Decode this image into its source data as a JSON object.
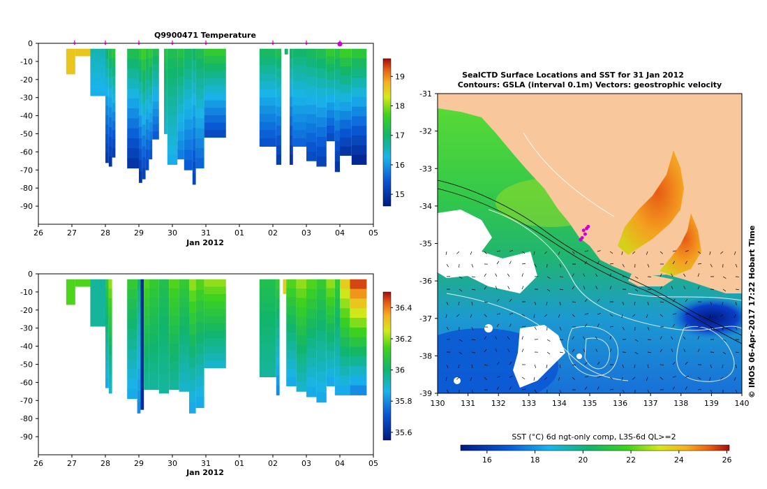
{
  "top_panel": {
    "title": "Q9900471  Temperature",
    "xlabel": "Jan 2012"
  },
  "bottom_panel": {
    "xlabel": "Jan 2012"
  },
  "map_panel": {
    "title_line1": "SealCTD Surface Locations and SST for 31 Jan 2012",
    "title_line2": "Contours: GSLA (interval 0.1m) Vectors: geostrophic velocity",
    "watermark": "©  IMOS 06-Apr-2017 17:22 Hobart Time",
    "colorbar_label": "SST (°C) 6d ngt-only comp, L3S-6d QL>=2"
  },
  "colors": {
    "land": "#f8c89c",
    "nodata": "#ffffff",
    "marker": "#cc00cc"
  },
  "chart_data": [
    {
      "type": "heatmap",
      "name": "temperature-section",
      "title": "Q9900471  Temperature",
      "xlabel": "Jan 2012",
      "x_ticks": [
        "26",
        "27",
        "28",
        "29",
        "30",
        "31",
        "01",
        "02",
        "03",
        "04",
        "05"
      ],
      "x_range": [
        26,
        36
      ],
      "y_ticks": [
        "0",
        "-10",
        "-20",
        "-30",
        "-40",
        "-50",
        "-60",
        "-70",
        "-80",
        "-90"
      ],
      "y_range": [
        -100,
        0
      ],
      "colorbar": {
        "ticks": [
          "15",
          "16",
          "17",
          "18",
          "19"
        ],
        "range": [
          14.6,
          19.6
        ]
      },
      "profile_times": [
        27.08,
        28.0,
        29.0,
        30.0,
        31.0,
        33.0,
        34.0,
        35.0
      ],
      "columns": [
        {
          "x0": 26.83,
          "x1": 27.1,
          "ymin": -17,
          "top": 18.6,
          "bottom": 18.6
        },
        {
          "x0": 27.1,
          "x1": 27.55,
          "ymin": -7,
          "top": 18.6,
          "bottom": 18.6
        },
        {
          "x0": 27.55,
          "x1": 28.0,
          "ymin": -29,
          "top": 16.6,
          "bottom": 16.2
        },
        {
          "x0": 28.0,
          "x1": 28.1,
          "ymin": -66,
          "top": 17.0,
          "bottom": 15.1
        },
        {
          "x0": 28.1,
          "x1": 28.2,
          "ymin": -68,
          "top": 17.2,
          "bottom": 15.0
        },
        {
          "x0": 28.2,
          "x1": 28.3,
          "ymin": -63,
          "top": 17.4,
          "bottom": 15.1
        },
        {
          "x0": 28.65,
          "x1": 29.0,
          "ymin": -69,
          "top": 17.2,
          "bottom": 15.0
        },
        {
          "x0": 29.0,
          "x1": 29.1,
          "ymin": -77,
          "top": 17.4,
          "bottom": 15.0
        },
        {
          "x0": 29.1,
          "x1": 29.2,
          "ymin": -75,
          "top": 17.6,
          "bottom": 15.2
        },
        {
          "x0": 29.2,
          "x1": 29.3,
          "ymin": -70,
          "top": 17.3,
          "bottom": 15.3
        },
        {
          "x0": 29.3,
          "x1": 29.4,
          "ymin": -64,
          "top": 17.5,
          "bottom": 15.4
        },
        {
          "x0": 29.4,
          "x1": 29.6,
          "ymin": -53,
          "top": 17.2,
          "bottom": 15.5
        },
        {
          "x0": 29.75,
          "x1": 29.85,
          "ymin": -50,
          "top": 17.3,
          "bottom": 16.4
        },
        {
          "x0": 29.85,
          "x1": 30.15,
          "ymin": -67,
          "top": 17.2,
          "bottom": 16.2
        },
        {
          "x0": 30.15,
          "x1": 30.35,
          "ymin": -64,
          "top": 17.3,
          "bottom": 15.8
        },
        {
          "x0": 30.35,
          "x1": 30.6,
          "ymin": -70,
          "top": 17.1,
          "bottom": 15.5
        },
        {
          "x0": 30.6,
          "x1": 30.7,
          "ymin": -78,
          "top": 17.0,
          "bottom": 15.2
        },
        {
          "x0": 30.7,
          "x1": 30.95,
          "ymin": -69,
          "top": 17.2,
          "bottom": 15.6
        },
        {
          "x0": 30.95,
          "x1": 31.6,
          "ymin": -52,
          "top": 17.5,
          "bottom": 15.3
        },
        {
          "x0": 32.6,
          "x1": 33.1,
          "ymin": -57,
          "top": 17.1,
          "bottom": 15.4
        },
        {
          "x0": 33.1,
          "x1": 33.25,
          "ymin": -67,
          "top": 17.2,
          "bottom": 15.1
        },
        {
          "x0": 33.35,
          "x1": 33.45,
          "ymin": -6,
          "top": 17.0,
          "bottom": 17.0
        },
        {
          "x0": 33.5,
          "x1": 33.6,
          "ymin": -67,
          "top": 17.0,
          "bottom": 15.0
        },
        {
          "x0": 33.6,
          "x1": 34.0,
          "ymin": -57,
          "top": 17.0,
          "bottom": 15.6
        },
        {
          "x0": 34.0,
          "x1": 34.3,
          "ymin": -65,
          "top": 17.1,
          "bottom": 15.3
        },
        {
          "x0": 34.3,
          "x1": 34.6,
          "ymin": -68,
          "top": 17.2,
          "bottom": 15.2
        },
        {
          "x0": 34.6,
          "x1": 34.85,
          "ymin": -54,
          "top": 17.5,
          "bottom": 15.3
        },
        {
          "x0": 34.85,
          "x1": 35.0,
          "ymin": -71,
          "top": 17.3,
          "bottom": 15.0
        },
        {
          "x0": 35.0,
          "x1": 35.35,
          "ymin": -62,
          "top": 17.6,
          "bottom": 15.0
        },
        {
          "x0": 35.35,
          "x1": 35.8,
          "ymin": -67,
          "top": 17.4,
          "bottom": 14.8
        }
      ]
    },
    {
      "type": "heatmap",
      "name": "salinity-section",
      "title": "",
      "xlabel": "Jan 2012",
      "x_ticks": [
        "26",
        "27",
        "28",
        "29",
        "30",
        "31",
        "01",
        "02",
        "03",
        "04",
        "05"
      ],
      "x_range": [
        26,
        36
      ],
      "y_ticks": [
        "0",
        "-10",
        "-20",
        "-30",
        "-40",
        "-50",
        "-60",
        "-70",
        "-80",
        "-90"
      ],
      "y_range": [
        -100,
        0
      ],
      "colorbar": {
        "ticks": [
          "35.6",
          "35.8",
          "36",
          "36.2",
          "36.4"
        ],
        "range": [
          35.55,
          36.5
        ]
      },
      "columns": [
        {
          "x0": 26.83,
          "x1": 27.1,
          "ymin": -17,
          "top": 36.15,
          "bottom": 36.15
        },
        {
          "x0": 27.1,
          "x1": 27.55,
          "ymin": -7,
          "top": 36.15,
          "bottom": 36.15
        },
        {
          "x0": 27.55,
          "x1": 28.0,
          "ymin": -29,
          "top": 35.95,
          "bottom": 35.95
        },
        {
          "x0": 28.0,
          "x1": 28.1,
          "ymin": -63,
          "top": 36.1,
          "bottom": 35.85
        },
        {
          "x0": 28.1,
          "x1": 28.2,
          "ymin": -66,
          "top": 36.2,
          "bottom": 35.9
        },
        {
          "x0": 28.65,
          "x1": 28.95,
          "ymin": -69,
          "top": 36.1,
          "bottom": 35.85
        },
        {
          "x0": 28.95,
          "x1": 29.05,
          "ymin": -77,
          "top": 36.0,
          "bottom": 35.8
        },
        {
          "x0": 29.05,
          "x1": 29.15,
          "ymin": -75,
          "top": 35.6,
          "bottom": 35.6
        },
        {
          "x0": 29.15,
          "x1": 29.3,
          "ymin": -64,
          "top": 36.15,
          "bottom": 35.95
        },
        {
          "x0": 29.3,
          "x1": 29.6,
          "ymin": -64,
          "top": 36.1,
          "bottom": 35.95
        },
        {
          "x0": 29.6,
          "x1": 29.9,
          "ymin": -66,
          "top": 36.05,
          "bottom": 35.95
        },
        {
          "x0": 29.9,
          "x1": 30.2,
          "ymin": -64,
          "top": 36.15,
          "bottom": 35.95
        },
        {
          "x0": 30.2,
          "x1": 30.5,
          "ymin": -65,
          "top": 36.1,
          "bottom": 35.9
        },
        {
          "x0": 30.5,
          "x1": 30.7,
          "ymin": -77,
          "top": 36.2,
          "bottom": 35.85
        },
        {
          "x0": 30.7,
          "x1": 30.95,
          "ymin": -74,
          "top": 36.15,
          "bottom": 35.85
        },
        {
          "x0": 30.95,
          "x1": 31.6,
          "ymin": -52,
          "top": 36.2,
          "bottom": 35.9
        },
        {
          "x0": 32.6,
          "x1": 33.1,
          "ymin": -57,
          "top": 36.05,
          "bottom": 35.95
        },
        {
          "x0": 33.1,
          "x1": 33.2,
          "ymin": -67,
          "top": 36.1,
          "bottom": 35.8
        },
        {
          "x0": 33.3,
          "x1": 33.4,
          "ymin": -11,
          "top": 36.3,
          "bottom": 36.3
        },
        {
          "x0": 33.4,
          "x1": 33.7,
          "ymin": -62,
          "top": 36.15,
          "bottom": 35.85
        },
        {
          "x0": 33.7,
          "x1": 34.0,
          "ymin": -65,
          "top": 36.2,
          "bottom": 35.9
        },
        {
          "x0": 34.0,
          "x1": 34.3,
          "ymin": -68,
          "top": 36.15,
          "bottom": 35.85
        },
        {
          "x0": 34.3,
          "x1": 34.6,
          "ymin": -71,
          "top": 36.1,
          "bottom": 35.85
        },
        {
          "x0": 34.6,
          "x1": 34.85,
          "ymin": -62,
          "top": 36.2,
          "bottom": 35.85
        },
        {
          "x0": 34.85,
          "x1": 35.0,
          "ymin": -67,
          "top": 36.1,
          "bottom": 35.85
        },
        {
          "x0": 35.0,
          "x1": 35.3,
          "ymin": -67,
          "top": 36.3,
          "bottom": 35.85
        },
        {
          "x0": 35.3,
          "x1": 35.8,
          "ymin": -67,
          "top": 36.45,
          "bottom": 35.8
        }
      ]
    },
    {
      "type": "heatmap",
      "name": "sst-map",
      "title": "SealCTD Surface Locations and SST for 31 Jan 2012",
      "x_ticks": [
        "130",
        "131",
        "132",
        "133",
        "134",
        "135",
        "136",
        "137",
        "138",
        "139",
        "140"
      ],
      "x_range": [
        130,
        140
      ],
      "y_ticks": [
        "-31",
        "-32",
        "-33",
        "-34",
        "-35",
        "-36",
        "-37",
        "-38",
        "-39"
      ],
      "y_range": [
        -39,
        -31
      ],
      "colorbar": {
        "ticks": [
          "16",
          "18",
          "20",
          "22",
          "24",
          "26"
        ],
        "range": [
          14.9,
          26.1
        ]
      },
      "sealctd_locations": [
        [
          134.7,
          -34.9
        ],
        [
          134.8,
          -34.65
        ],
        [
          134.85,
          -34.75
        ],
        [
          134.9,
          -34.6
        ],
        [
          134.95,
          -34.55
        ],
        [
          134.75,
          -34.85
        ]
      ]
    }
  ]
}
